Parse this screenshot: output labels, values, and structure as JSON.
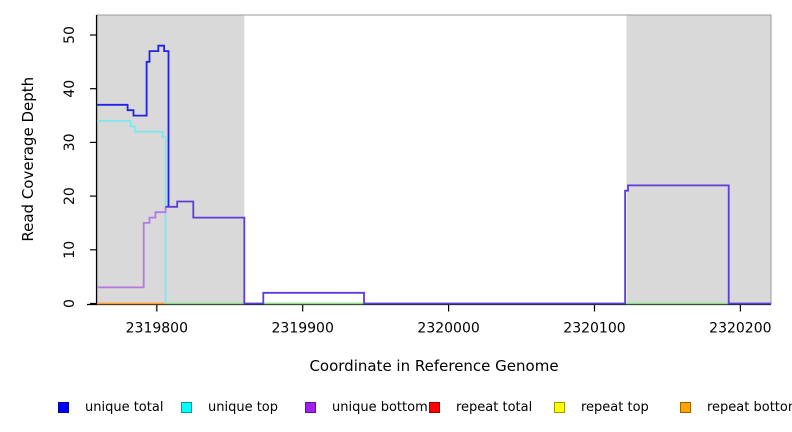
{
  "figure": {
    "xlabel": "Coordinate in Reference Genome",
    "ylabel": "Read Coverage Depth"
  },
  "chart_data": {
    "type": "line",
    "subtype": "step-coverage-plot",
    "title": "",
    "xlabel": "Coordinate in Reference Genome",
    "ylabel": "Read Coverage Depth",
    "x_ticks": [
      2319800,
      2319900,
      2320000,
      2320100,
      2320200
    ],
    "x_tick_labels": [
      "2319800",
      "2319900",
      "2320000",
      "2320100",
      "2320200"
    ],
    "y_ticks": [
      0,
      10,
      20,
      30,
      40,
      50
    ],
    "y_tick_labels": [
      "0",
      "10",
      "20",
      "30",
      "40",
      "50"
    ],
    "xlim": [
      2319759,
      2320221
    ],
    "ylim": [
      0,
      50
    ],
    "grid": false,
    "legend_position": "bottom",
    "shaded_regions_x": [
      [
        2319759,
        2319860
      ],
      [
        2320122,
        2320221
      ]
    ],
    "series": [
      {
        "name": "unique total",
        "color": "#0000ff",
        "step_points": [
          [
            2319759,
            37
          ],
          [
            2319780,
            36
          ],
          [
            2319784,
            35
          ],
          [
            2319793,
            45
          ],
          [
            2319795,
            47
          ],
          [
            2319801,
            48
          ],
          [
            2319805,
            47
          ],
          [
            2319808,
            18
          ],
          [
            2319814,
            19
          ],
          [
            2319825,
            16
          ],
          [
            2319860,
            0
          ],
          [
            2319873,
            2
          ],
          [
            2319942,
            0
          ],
          [
            2320121,
            21
          ],
          [
            2320123,
            22
          ],
          [
            2320192,
            0
          ],
          [
            2320221,
            0
          ]
        ]
      },
      {
        "name": "unique top",
        "color": "#00ffff",
        "step_points": [
          [
            2319759,
            34
          ],
          [
            2319782,
            33
          ],
          [
            2319785,
            32
          ],
          [
            2319804,
            31
          ],
          [
            2319806,
            0
          ],
          [
            2320221,
            0
          ]
        ]
      },
      {
        "name": "unique bottom",
        "color": "#a020f0",
        "step_points": [
          [
            2319759,
            3
          ],
          [
            2319791,
            15
          ],
          [
            2319795,
            16
          ],
          [
            2319799,
            17
          ],
          [
            2319806,
            18
          ],
          [
            2319814,
            19
          ],
          [
            2319825,
            16
          ],
          [
            2319860,
            0
          ],
          [
            2319873,
            2
          ],
          [
            2319942,
            0
          ],
          [
            2320121,
            21
          ],
          [
            2320123,
            22
          ],
          [
            2320192,
            0
          ],
          [
            2320221,
            0
          ]
        ]
      },
      {
        "name": "repeat total",
        "color": "#ff0000",
        "step_points": [
          [
            2319759,
            0
          ],
          [
            2320221,
            0
          ]
        ]
      },
      {
        "name": "repeat top",
        "color": "#ffff00",
        "step_points": [
          [
            2319759,
            0
          ],
          [
            2320221,
            0
          ]
        ]
      },
      {
        "name": "repeat bottom",
        "color": "#ffa500",
        "step_points": [
          [
            2319759,
            0
          ],
          [
            2319806,
            0
          ]
        ]
      }
    ],
    "render_paths": [
      {
        "name": "baseline-blend-green",
        "color": "#8fdc8f",
        "points": [
          [
            2319806,
            0
          ],
          [
            2320221,
            0
          ]
        ]
      },
      {
        "name": "repeat-bottom-visible",
        "color": "#ff9d30",
        "points": [
          [
            2319759,
            0
          ],
          [
            2319806,
            0
          ]
        ]
      },
      {
        "name": "unique-top-visible",
        "color": "#7de9ee",
        "points": [
          [
            2319759,
            34
          ],
          [
            2319782,
            34
          ],
          [
            2319782,
            33
          ],
          [
            2319785,
            33
          ],
          [
            2319785,
            32
          ],
          [
            2319804,
            32
          ],
          [
            2319804,
            31
          ],
          [
            2319806,
            31
          ],
          [
            2319806,
            0
          ]
        ]
      },
      {
        "name": "unique-bottom-visible",
        "color": "#b678e2",
        "points": [
          [
            2319759,
            3
          ],
          [
            2319791,
            3
          ],
          [
            2319791,
            15
          ],
          [
            2319795,
            15
          ],
          [
            2319795,
            16
          ],
          [
            2319799,
            16
          ],
          [
            2319799,
            17
          ],
          [
            2319806,
            17
          ],
          [
            2319806,
            18
          ]
        ]
      },
      {
        "name": "unique-total-visible",
        "color": "#2121e8",
        "points": [
          [
            2319759,
            37
          ],
          [
            2319780,
            37
          ],
          [
            2319780,
            36
          ],
          [
            2319784,
            36
          ],
          [
            2319784,
            35
          ],
          [
            2319793,
            35
          ],
          [
            2319793,
            45
          ],
          [
            2319795,
            45
          ],
          [
            2319795,
            47
          ],
          [
            2319801,
            47
          ],
          [
            2319801,
            48
          ],
          [
            2319805,
            48
          ],
          [
            2319805,
            47
          ],
          [
            2319808,
            47
          ],
          [
            2319808,
            18
          ]
        ]
      },
      {
        "name": "total-bottom-overlap",
        "color": "#5d3bdc",
        "points": [
          [
            2319806,
            18
          ],
          [
            2319814,
            18
          ],
          [
            2319814,
            19
          ],
          [
            2319825,
            19
          ],
          [
            2319825,
            16
          ],
          [
            2319860,
            16
          ],
          [
            2319860,
            0
          ],
          [
            2319873,
            0
          ],
          [
            2319873,
            2
          ],
          [
            2319942,
            2
          ],
          [
            2319942,
            0
          ],
          [
            2320121,
            0
          ],
          [
            2320121,
            21
          ],
          [
            2320123,
            21
          ],
          [
            2320123,
            22
          ],
          [
            2320192,
            22
          ],
          [
            2320192,
            0
          ],
          [
            2320221,
            0
          ]
        ]
      }
    ]
  },
  "legend": {
    "items": [
      {
        "label": "unique total",
        "fill": "#0000ff",
        "border": "#00009b"
      },
      {
        "label": "unique top",
        "fill": "#00ffff",
        "border": "#009b9b"
      },
      {
        "label": "unique bottom",
        "fill": "#a020f0",
        "border": "#60109b"
      },
      {
        "label": "repeat total",
        "fill": "#ff0000",
        "border": "#9b0000"
      },
      {
        "label": "repeat top",
        "fill": "#ffff00",
        "border": "#9b9b00"
      },
      {
        "label": "repeat bottom",
        "fill": "#ffa500",
        "border": "#9b6400"
      }
    ]
  },
  "colors": {
    "shaded_region": "#d9d9d9",
    "plot_border": "#9a9a9a",
    "axis": "#000000",
    "background": "#ffffff"
  }
}
